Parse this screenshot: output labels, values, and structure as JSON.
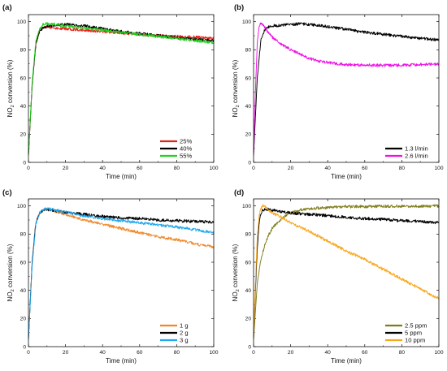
{
  "chart_data": [
    {
      "panel": "(a)",
      "type": "line",
      "xlabel": "Time (min)",
      "ylabel": "NO2 conversion (%)",
      "xlim": [
        0,
        100
      ],
      "ylim": [
        0,
        105
      ],
      "xticks": [
        0,
        20,
        40,
        60,
        80,
        100
      ],
      "yticks": [
        0,
        20,
        40,
        60,
        80,
        100
      ],
      "legend": "bottom-right",
      "series": [
        {
          "name": "25%",
          "color": "#e8211a",
          "x": [
            0,
            2,
            4,
            6,
            8,
            10,
            15,
            20,
            30,
            40,
            50,
            60,
            70,
            80,
            90,
            100
          ],
          "y": [
            5,
            55,
            84,
            93,
            96,
            96.5,
            95.5,
            95,
            94,
            93,
            92,
            91,
            90,
            89.5,
            89,
            88
          ]
        },
        {
          "name": "40%",
          "color": "#000000",
          "x": [
            0,
            2,
            4,
            6,
            8,
            10,
            15,
            20,
            30,
            40,
            50,
            60,
            70,
            80,
            90,
            100
          ],
          "y": [
            5,
            55,
            84,
            93,
            96,
            96.8,
            97.5,
            98,
            97,
            95,
            93,
            91.5,
            90,
            88.5,
            87.5,
            86.5
          ]
        },
        {
          "name": "55%",
          "color": "#22d21e",
          "x": [
            0,
            2,
            4,
            6,
            8,
            10,
            15,
            20,
            30,
            40,
            50,
            60,
            70,
            80,
            90,
            100
          ],
          "y": [
            5,
            57,
            86,
            95,
            98,
            98.5,
            98,
            97,
            95.5,
            94,
            92.5,
            91,
            89.5,
            88,
            86.5,
            85
          ]
        }
      ]
    },
    {
      "panel": "(b)",
      "type": "line",
      "xlabel": "Time (min)",
      "ylabel": "NO2 conversion (%)",
      "xlim": [
        0,
        100
      ],
      "ylim": [
        0,
        105
      ],
      "xticks": [
        0,
        20,
        40,
        60,
        80,
        100
      ],
      "yticks": [
        0,
        20,
        40,
        60,
        80,
        100
      ],
      "legend": "bottom-right",
      "series": [
        {
          "name": "1.3 l/min",
          "color": "#000000",
          "x": [
            0,
            2,
            4,
            6,
            8,
            10,
            15,
            20,
            25,
            30,
            40,
            50,
            60,
            70,
            80,
            90,
            100
          ],
          "y": [
            5,
            60,
            88,
            94,
            96,
            97,
            97.5,
            98,
            98.5,
            98,
            96.5,
            94.5,
            92.5,
            91,
            89.5,
            88,
            87
          ]
        },
        {
          "name": "2.6 l/min",
          "color": "#ee10e6",
          "x": [
            0,
            1,
            2,
            3,
            4,
            5,
            6,
            8,
            10,
            15,
            20,
            25,
            30,
            35,
            40,
            45,
            50,
            60,
            70,
            80,
            90,
            100
          ],
          "y": [
            5,
            50,
            85,
            97,
            99,
            98,
            96,
            92,
            89,
            84,
            80,
            77,
            74,
            72,
            71,
            70,
            69.5,
            69,
            69,
            69,
            69.5,
            70
          ]
        }
      ]
    },
    {
      "panel": "(c)",
      "type": "line",
      "xlabel": "Time (min)",
      "ylabel": "NO2 conversion (%)",
      "xlim": [
        0,
        100
      ],
      "ylim": [
        0,
        105
      ],
      "xticks": [
        0,
        20,
        40,
        60,
        80,
        100
      ],
      "yticks": [
        0,
        20,
        40,
        60,
        80,
        100
      ],
      "legend": "bottom-right",
      "series": [
        {
          "name": "1 g",
          "color": "#f0882a",
          "x": [
            0,
            2,
            4,
            6,
            8,
            10,
            15,
            20,
            30,
            40,
            50,
            60,
            70,
            80,
            90,
            100
          ],
          "y": [
            5,
            60,
            88,
            95,
            97,
            97.5,
            96,
            94,
            90,
            87,
            84,
            81,
            78,
            76,
            73,
            71
          ]
        },
        {
          "name": "2 g",
          "color": "#000000",
          "x": [
            0,
            2,
            4,
            6,
            8,
            10,
            15,
            20,
            30,
            40,
            50,
            60,
            70,
            80,
            90,
            100
          ],
          "y": [
            5,
            60,
            88,
            95,
            97,
            97.5,
            96.5,
            95.5,
            94,
            92.5,
            91.5,
            91,
            90,
            89.5,
            89,
            88.5
          ]
        },
        {
          "name": "3 g",
          "color": "#1ea6ee",
          "x": [
            0,
            2,
            4,
            6,
            8,
            10,
            15,
            20,
            30,
            40,
            50,
            60,
            70,
            80,
            90,
            100
          ],
          "y": [
            5,
            58,
            87,
            95,
            97.5,
            98,
            97,
            95.5,
            93,
            91,
            89.5,
            88,
            86.5,
            85,
            83,
            81
          ]
        }
      ]
    },
    {
      "panel": "(d)",
      "type": "line",
      "xlabel": "Time (min)",
      "ylabel": "NO2 conversion (%)",
      "xlim": [
        0,
        100
      ],
      "ylim": [
        0,
        105
      ],
      "xticks": [
        0,
        20,
        40,
        60,
        80,
        100
      ],
      "yticks": [
        0,
        20,
        40,
        60,
        80,
        100
      ],
      "legend": "bottom-right",
      "series": [
        {
          "name": "2.5 ppm",
          "color": "#7e7e1a",
          "x": [
            0,
            2,
            4,
            6,
            8,
            10,
            15,
            20,
            25,
            30,
            40,
            50,
            60,
            70,
            80,
            90,
            100
          ],
          "y": [
            5,
            45,
            62,
            72,
            79,
            84,
            91,
            95,
            97,
            98,
            99,
            99.5,
            99.5,
            99.8,
            99.8,
            99.9,
            100
          ]
        },
        {
          "name": "5 ppm",
          "color": "#000000",
          "x": [
            0,
            1,
            2,
            3,
            4,
            5,
            6,
            8,
            10,
            15,
            20,
            30,
            40,
            50,
            60,
            70,
            80,
            90,
            100
          ],
          "y": [
            5,
            40,
            70,
            88,
            95,
            97,
            97.5,
            97.5,
            97,
            96,
            95,
            94,
            93,
            92,
            91,
            90.5,
            89.5,
            89,
            88
          ]
        },
        {
          "name": "10 ppm",
          "color": "#f7a71c",
          "x": [
            0,
            1,
            2,
            3,
            4,
            5,
            6,
            8,
            10,
            15,
            20,
            30,
            40,
            50,
            60,
            70,
            80,
            90,
            100
          ],
          "y": [
            5,
            45,
            78,
            93,
            98,
            100,
            99.5,
            97,
            95,
            92,
            88,
            82,
            75,
            68,
            62,
            55,
            48,
            41,
            34
          ]
        }
      ]
    }
  ]
}
